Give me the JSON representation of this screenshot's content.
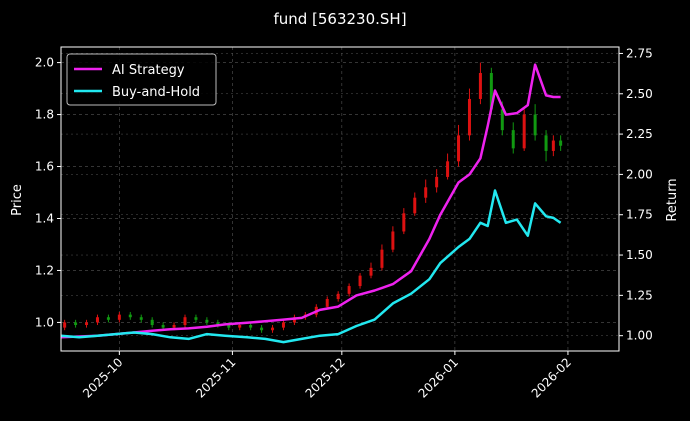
{
  "chart_data": {
    "type": "line",
    "title": "fund [563230.SH]",
    "ylabel_left": "Price",
    "ylabel_right": "Return",
    "ylim_left": [
      0.89,
      2.06
    ],
    "ylim_right": [
      0.905,
      2.79
    ],
    "xlim": [
      "2025-09-15",
      "2026-02-15"
    ],
    "x_ticks": [
      "2025-10",
      "2025-11",
      "2025-12",
      "2026-01",
      "2026-02"
    ],
    "x_tick_dates": [
      "2025-10-01",
      "2025-11-01",
      "2025-12-01",
      "2026-01-01",
      "2026-02-01"
    ],
    "y_ticks_left": [
      "1.0",
      "1.2",
      "1.4",
      "1.6",
      "1.8",
      "2.0"
    ],
    "y_ticks_right": [
      "1.00",
      "1.25",
      "1.50",
      "1.75",
      "2.00",
      "2.25",
      "2.50",
      "2.75"
    ],
    "grid": true,
    "legend_position": "top-left",
    "colors": {
      "ai": "#ee22ee",
      "bh": "#22e8f0",
      "up": "#dd1111",
      "down": "#119911",
      "grid": "#555555"
    },
    "series": [
      {
        "name": "AI Strategy",
        "axis": "right",
        "x": [
          "2025-09-15",
          "2025-09-20",
          "2025-09-25",
          "2025-09-30",
          "2025-10-05",
          "2025-10-10",
          "2025-10-15",
          "2025-10-20",
          "2025-10-25",
          "2025-10-30",
          "2025-11-05",
          "2025-11-10",
          "2025-11-15",
          "2025-11-20",
          "2025-11-25",
          "2025-11-30",
          "2025-12-05",
          "2025-12-10",
          "2025-12-15",
          "2025-12-20",
          "2025-12-25",
          "2025-12-28",
          "2026-01-02",
          "2026-01-05",
          "2026-01-08",
          "2026-01-10",
          "2026-01-12",
          "2026-01-15",
          "2026-01-18",
          "2026-01-21",
          "2026-01-23",
          "2026-01-26",
          "2026-01-28",
          "2026-01-30"
        ],
        "values": [
          0.99,
          0.995,
          1.0,
          1.01,
          1.02,
          1.03,
          1.04,
          1.045,
          1.055,
          1.07,
          1.08,
          1.09,
          1.1,
          1.11,
          1.16,
          1.18,
          1.25,
          1.28,
          1.32,
          1.4,
          1.6,
          1.75,
          1.95,
          2.0,
          2.1,
          2.3,
          2.52,
          2.37,
          2.38,
          2.43,
          2.68,
          2.49,
          2.48,
          2.48
        ]
      },
      {
        "name": "Buy-and-Hold",
        "axis": "right",
        "x": [
          "2025-09-15",
          "2025-09-20",
          "2025-09-25",
          "2025-09-30",
          "2025-10-05",
          "2025-10-10",
          "2025-10-15",
          "2025-10-20",
          "2025-10-25",
          "2025-10-30",
          "2025-11-05",
          "2025-11-10",
          "2025-11-15",
          "2025-11-20",
          "2025-11-25",
          "2025-11-30",
          "2025-12-05",
          "2025-12-10",
          "2025-12-15",
          "2025-12-20",
          "2025-12-25",
          "2025-12-28",
          "2026-01-02",
          "2026-01-05",
          "2026-01-08",
          "2026-01-10",
          "2026-01-12",
          "2026-01-15",
          "2026-01-18",
          "2026-01-21",
          "2026-01-23",
          "2026-01-26",
          "2026-01-28",
          "2026-01-30"
        ],
        "values": [
          1.0,
          0.99,
          1.0,
          1.01,
          1.02,
          1.01,
          0.99,
          0.98,
          1.01,
          1.0,
          0.99,
          0.98,
          0.96,
          0.98,
          1.0,
          1.01,
          1.06,
          1.1,
          1.2,
          1.26,
          1.35,
          1.45,
          1.55,
          1.6,
          1.7,
          1.68,
          1.9,
          1.7,
          1.72,
          1.62,
          1.82,
          1.74,
          1.73,
          1.7
        ]
      }
    ],
    "candles": {
      "axis": "left",
      "x": [
        "2025-09-16",
        "2025-09-19",
        "2025-09-22",
        "2025-09-25",
        "2025-09-28",
        "2025-10-01",
        "2025-10-04",
        "2025-10-07",
        "2025-10-10",
        "2025-10-13",
        "2025-10-16",
        "2025-10-19",
        "2025-10-22",
        "2025-10-25",
        "2025-10-28",
        "2025-10-31",
        "2025-11-03",
        "2025-11-06",
        "2025-11-09",
        "2025-11-12",
        "2025-11-15",
        "2025-11-18",
        "2025-11-21",
        "2025-11-24",
        "2025-11-27",
        "2025-11-30",
        "2025-12-03",
        "2025-12-06",
        "2025-12-09",
        "2025-12-12",
        "2025-12-15",
        "2025-12-18",
        "2025-12-21",
        "2025-12-24",
        "2025-12-27",
        "2025-12-30",
        "2026-01-02",
        "2026-01-05",
        "2026-01-08",
        "2026-01-11",
        "2026-01-14",
        "2026-01-17",
        "2026-01-20",
        "2026-01-23",
        "2026-01-26",
        "2026-01-28",
        "2026-01-30"
      ],
      "open": [
        0.98,
        1.0,
        0.99,
        1.0,
        1.02,
        1.01,
        1.03,
        1.02,
        1.01,
        0.99,
        0.98,
        0.99,
        1.02,
        1.01,
        1.0,
        0.99,
        0.98,
        0.99,
        0.98,
        0.97,
        0.98,
        1.0,
        1.02,
        1.03,
        1.06,
        1.09,
        1.11,
        1.14,
        1.18,
        1.21,
        1.28,
        1.35,
        1.42,
        1.48,
        1.52,
        1.56,
        1.62,
        1.72,
        1.86,
        1.96,
        1.82,
        1.74,
        1.67,
        1.8,
        1.72,
        1.66,
        1.7
      ],
      "close": [
        1.0,
        0.99,
        1.0,
        1.02,
        1.01,
        1.03,
        1.02,
        1.01,
        0.99,
        0.98,
        0.99,
        1.02,
        1.01,
        1.0,
        0.99,
        0.98,
        0.99,
        0.98,
        0.97,
        0.98,
        1.0,
        1.02,
        1.03,
        1.06,
        1.09,
        1.11,
        1.14,
        1.18,
        1.21,
        1.28,
        1.35,
        1.42,
        1.48,
        1.52,
        1.56,
        1.62,
        1.72,
        1.86,
        1.96,
        1.82,
        1.74,
        1.67,
        1.8,
        1.72,
        1.66,
        1.7,
        1.68
      ],
      "high": [
        1.01,
        1.01,
        1.01,
        1.03,
        1.03,
        1.04,
        1.04,
        1.03,
        1.02,
        1.0,
        1.0,
        1.03,
        1.03,
        1.02,
        1.01,
        1.0,
        1.0,
        1.0,
        0.99,
        0.99,
        1.01,
        1.03,
        1.04,
        1.07,
        1.1,
        1.12,
        1.15,
        1.19,
        1.23,
        1.3,
        1.37,
        1.44,
        1.5,
        1.55,
        1.59,
        1.65,
        1.76,
        1.9,
        2.0,
        1.98,
        1.85,
        1.77,
        1.82,
        1.84,
        1.74,
        1.72,
        1.72
      ],
      "low": [
        0.97,
        0.98,
        0.98,
        0.99,
        1.0,
        1.0,
        1.01,
        1.0,
        0.98,
        0.97,
        0.97,
        0.98,
        1.0,
        0.99,
        0.98,
        0.97,
        0.97,
        0.97,
        0.96,
        0.96,
        0.97,
        0.99,
        1.01,
        1.02,
        1.05,
        1.08,
        1.1,
        1.13,
        1.17,
        1.2,
        1.27,
        1.34,
        1.41,
        1.46,
        1.5,
        1.55,
        1.6,
        1.7,
        1.84,
        1.8,
        1.72,
        1.65,
        1.66,
        1.7,
        1.62,
        1.64,
        1.66
      ]
    }
  }
}
